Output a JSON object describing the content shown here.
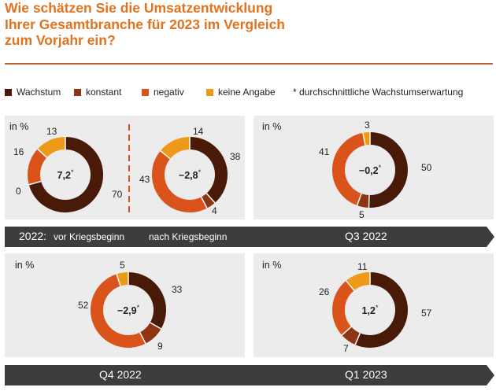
{
  "title_line1": "Wie schätzen Sie die Umsatzentwicklung",
  "title_line2": "Ihrer Gesamtbranche für 2023 im Vergleich",
  "title_line3": "zum Vorjahr ein?",
  "legend": [
    {
      "label": "Wachstum",
      "color": "#4a1a08"
    },
    {
      "label": "konstant",
      "color": "#8e3515"
    },
    {
      "label": "negativ",
      "color": "#d9531a"
    },
    {
      "label": "keine Angabe",
      "color": "#ee9a18"
    }
  ],
  "footnote": "* durchschnittliche Wachstumserwartung",
  "unit_label": "in %",
  "band1": {
    "year": "2022:",
    "before": "vor Kriegsbeginn",
    "after": "nach Kriegsbeginn",
    "q3": "Q3 2022"
  },
  "band2": {
    "q4": "Q4 2022",
    "q1": "Q1 2023"
  },
  "chart_data": {
    "type": "pie",
    "variant": "donut",
    "categories": [
      "Wachstum",
      "konstant",
      "negativ",
      "keine Angabe"
    ],
    "charts": [
      {
        "period": "2022: vor Kriegsbeginn",
        "values": [
          70,
          0,
          16,
          13
        ],
        "center": "7,2",
        "labels": {
          "wachstum": "70",
          "konstant": "0",
          "negativ": "16",
          "keine_angabe": "13"
        }
      },
      {
        "period": "2022: nach Kriegsbeginn",
        "values": [
          38,
          4,
          43,
          14
        ],
        "center": "−2,8",
        "labels": {
          "wachstum": "38",
          "konstant": "4",
          "negativ": "43",
          "keine_angabe": "14"
        }
      },
      {
        "period": "Q3 2022",
        "values": [
          50,
          5,
          41,
          3
        ],
        "center": "−0,2",
        "labels": {
          "wachstum": "50",
          "konstant": "5",
          "negativ": "41",
          "keine_angabe": "3"
        }
      },
      {
        "period": "Q4 2022",
        "values": [
          33,
          9,
          52,
          5
        ],
        "center": "−2,9",
        "labels": {
          "wachstum": "33",
          "konstant": "9",
          "negativ": "52",
          "keine_angabe": "5"
        }
      },
      {
        "period": "Q1 2023",
        "values": [
          57,
          7,
          26,
          11
        ],
        "center": "1,2",
        "labels": {
          "wachstum": "57",
          "konstant": "7",
          "negativ": "26",
          "keine_angabe": "11"
        }
      }
    ]
  }
}
